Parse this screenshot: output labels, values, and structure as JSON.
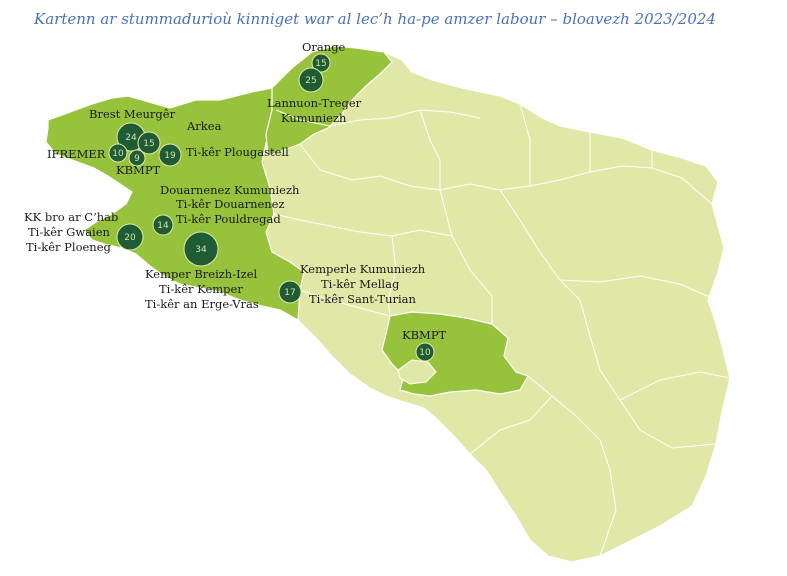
{
  "title": "Kartenn ar stummadurioù kinniget war al lec’h ha-pe amzer labour – bloavezh 2023/2024",
  "colors": {
    "territory": "#e1e7a6",
    "highlight": "#97c23c",
    "border": "#ffffff",
    "bubble": "#1f5b35",
    "label": "#1a1a1a",
    "title": "#4a72b8"
  },
  "bubbles": [
    {
      "id": "orange",
      "value": 15
    },
    {
      "id": "lannion",
      "value": 25
    },
    {
      "id": "brest",
      "value": 24
    },
    {
      "id": "arkea",
      "value": 15
    },
    {
      "id": "ifremer",
      "value": 10
    },
    {
      "id": "kbmpt-brest",
      "value": 9
    },
    {
      "id": "plougastell",
      "value": 19
    },
    {
      "id": "douarnenez",
      "value": 14
    },
    {
      "id": "kkcab",
      "value": 20
    },
    {
      "id": "kemper",
      "value": 34
    },
    {
      "id": "kemperle",
      "value": 17
    },
    {
      "id": "kbmpt-vannes",
      "value": 10
    }
  ],
  "labels": {
    "orange": "Orange",
    "lannion_1": "Lannuon-Treger",
    "lannion_2": "Kumuniezh",
    "brest": "Brest Meurgêr",
    "arkea": "Arkea",
    "ifremer": "IFREMER",
    "plougastell": "Ti-kêr Plougastell",
    "kbmpt_brest": "KBMPT",
    "douarnenez_1": "Douarnenez Kumuniezh",
    "douarnenez_2": "Ti-kêr Douarnenez",
    "douarnenez_3": "Ti-kêr Pouldregad",
    "kkcab_1": "KK bro ar C’hab",
    "kkcab_2": "Ti-kêr Gwaien",
    "kkcab_3": "Ti-kêr Ploeneg",
    "kemper_1": "Kemper Breizh-Izel",
    "kemper_2": "Ti-kêr Kemper",
    "kemper_3": "Ti-kêr an Erge-Vras",
    "kemperle_1": "Kemperle Kumuniezh",
    "kemperle_2": "Ti-kêr Mellag",
    "kemperle_3": "Ti-kêr Sant-Turian",
    "kbmpt_vannes": "KBMPT"
  }
}
